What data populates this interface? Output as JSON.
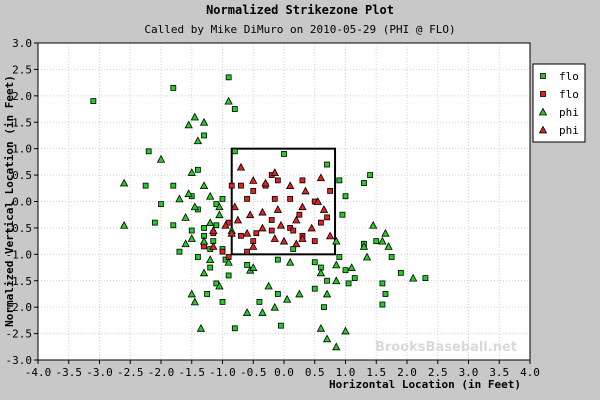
{
  "chart_data": {
    "type": "scatter",
    "title": "Normalized Strikezone Plot",
    "subtitle": "Called by Mike DiMuro on 2010-05-29 (PHI @ FLO)",
    "xlabel": "Horizontal Location (in Feet)",
    "ylabel": "Normalized Vertical Location (in Feet)",
    "xlim": [
      -4.0,
      4.0
    ],
    "ylim": [
      -3.0,
      3.0
    ],
    "xticks": [
      "-4.0",
      "-3.5",
      "-3.0",
      "-2.5",
      "-2.0",
      "-1.5",
      "-1.0",
      "-0.5",
      "0.0",
      "0.5",
      "1.0",
      "1.5",
      "2.0",
      "2.5",
      "3.0",
      "3.5",
      "4.0"
    ],
    "yticks": [
      "3.0",
      "2.5",
      "2.0",
      "1.5",
      "1.0",
      "0.5",
      "0.0",
      "-0.5",
      "-1.0",
      "-1.5",
      "-2.0",
      "-2.5",
      "-3.0"
    ],
    "grid": true,
    "legend_position": "top-right",
    "strike_zone": {
      "x": [
        -0.85,
        0.83
      ],
      "y": [
        -1.0,
        1.0
      ]
    },
    "watermark": "BrooksBaseball.net",
    "series": [
      {
        "name": "flo",
        "marker": "square",
        "color": "#22cc22",
        "points": [
          [
            -3.1,
            1.9
          ],
          [
            -1.8,
            2.15
          ],
          [
            -1.3,
            1.25
          ],
          [
            -0.9,
            2.35
          ],
          [
            -0.8,
            1.75
          ],
          [
            -0.8,
            0.95
          ],
          [
            0.0,
            0.9
          ],
          [
            -2.2,
            0.95
          ],
          [
            -2.25,
            0.3
          ],
          [
            -1.8,
            0.3
          ],
          [
            -2.0,
            -0.05
          ],
          [
            -1.5,
            0.1
          ],
          [
            -1.4,
            -0.15
          ],
          [
            -1.4,
            0.6
          ],
          [
            -1.1,
            -0.05
          ],
          [
            -1.0,
            0.05
          ],
          [
            -1.1,
            -0.45
          ],
          [
            -1.3,
            -0.5
          ],
          [
            -1.5,
            -0.55
          ],
          [
            -1.8,
            -0.45
          ],
          [
            -2.1,
            -0.4
          ],
          [
            -1.7,
            -0.95
          ],
          [
            -1.3,
            -0.65
          ],
          [
            -1.15,
            -0.75
          ],
          [
            -1.0,
            -0.9
          ],
          [
            -0.95,
            -1.1
          ],
          [
            -0.9,
            -1.4
          ],
          [
            -1.2,
            -0.9
          ],
          [
            -1.4,
            -1.05
          ],
          [
            -1.2,
            -1.25
          ],
          [
            -1.1,
            -1.55
          ],
          [
            -1.25,
            -1.75
          ],
          [
            -1.0,
            -1.9
          ],
          [
            -0.8,
            -2.4
          ],
          [
            -0.6,
            -1.2
          ],
          [
            -0.4,
            -1.9
          ],
          [
            -0.1,
            -1.75
          ],
          [
            -0.05,
            -2.35
          ],
          [
            -0.1,
            -1.1
          ],
          [
            0.15,
            -0.9
          ],
          [
            0.5,
            -1.15
          ],
          [
            0.6,
            -1.25
          ],
          [
            0.7,
            -1.5
          ],
          [
            0.5,
            -1.65
          ],
          [
            0.65,
            -2.0
          ],
          [
            0.9,
            -1.05
          ],
          [
            1.0,
            -1.3
          ],
          [
            1.15,
            -1.45
          ],
          [
            1.05,
            -1.55
          ],
          [
            1.3,
            -0.8
          ],
          [
            1.5,
            -0.75
          ],
          [
            1.75,
            -1.05
          ],
          [
            1.6,
            -1.55
          ],
          [
            1.65,
            -1.75
          ],
          [
            1.6,
            -1.95
          ],
          [
            1.9,
            -1.35
          ],
          [
            2.3,
            -1.45
          ],
          [
            0.7,
            0.7
          ],
          [
            0.9,
            0.4
          ],
          [
            1.0,
            0.1
          ],
          [
            0.95,
            -0.25
          ],
          [
            1.3,
            0.35
          ],
          [
            1.4,
            0.5
          ]
        ]
      },
      {
        "name": "flo",
        "marker": "square",
        "color": "#dd2222",
        "points": [
          [
            -0.9,
            -0.4
          ],
          [
            -0.85,
            0.3
          ],
          [
            -0.7,
            0.3
          ],
          [
            -0.6,
            0.05
          ],
          [
            -0.5,
            0.2
          ],
          [
            -0.3,
            0.3
          ],
          [
            -0.2,
            -0.35
          ],
          [
            -0.15,
            0.05
          ],
          [
            -0.1,
            0.4
          ],
          [
            0.1,
            0.05
          ],
          [
            0.3,
            0.4
          ],
          [
            0.25,
            -0.25
          ],
          [
            0.5,
            0.0
          ],
          [
            0.6,
            -0.4
          ],
          [
            0.75,
            0.2
          ],
          [
            0.7,
            -0.3
          ],
          [
            0.5,
            -0.75
          ],
          [
            0.3,
            -0.65
          ],
          [
            0.1,
            -0.5
          ],
          [
            -0.2,
            -0.55
          ],
          [
            -0.45,
            -0.6
          ],
          [
            -0.5,
            -0.75
          ],
          [
            -0.7,
            -0.65
          ],
          [
            -0.6,
            -0.95
          ],
          [
            -0.9,
            -1.05
          ],
          [
            -1.0,
            -0.95
          ],
          [
            -1.3,
            -0.85
          ],
          [
            -1.15,
            -0.6
          ],
          [
            -0.2,
            0.5
          ],
          [
            0.15,
            -0.55
          ]
        ]
      },
      {
        "name": "phi",
        "marker": "triangle",
        "color": "#22cc22",
        "points": [
          [
            -0.9,
            1.9
          ],
          [
            -1.45,
            1.6
          ],
          [
            -1.55,
            1.45
          ],
          [
            -1.3,
            1.5
          ],
          [
            -1.4,
            1.15
          ],
          [
            -2.0,
            0.8
          ],
          [
            -1.5,
            0.55
          ],
          [
            -2.6,
            0.35
          ],
          [
            -2.6,
            -0.45
          ],
          [
            -1.55,
            0.15
          ],
          [
            -1.7,
            0.05
          ],
          [
            -1.3,
            0.3
          ],
          [
            -1.2,
            0.1
          ],
          [
            -1.45,
            -0.1
          ],
          [
            -1.6,
            -0.3
          ],
          [
            -1.2,
            -0.4
          ],
          [
            -1.15,
            -0.55
          ],
          [
            -1.05,
            -0.25
          ],
          [
            -1.05,
            -0.1
          ],
          [
            -1.5,
            -0.7
          ],
          [
            -1.6,
            -0.8
          ],
          [
            -1.3,
            -0.75
          ],
          [
            -1.2,
            -1.1
          ],
          [
            -1.3,
            -1.35
          ],
          [
            -1.5,
            -1.75
          ],
          [
            -1.45,
            -1.9
          ],
          [
            -1.05,
            -1.6
          ],
          [
            -0.9,
            -1.15
          ],
          [
            -0.55,
            -1.3
          ],
          [
            -0.6,
            -2.1
          ],
          [
            -0.35,
            -2.1
          ],
          [
            -0.25,
            -1.6
          ],
          [
            -0.15,
            -2.0
          ],
          [
            0.05,
            -1.85
          ],
          [
            0.25,
            -1.75
          ],
          [
            0.1,
            -1.15
          ],
          [
            0.6,
            -1.35
          ],
          [
            0.85,
            -1.2
          ],
          [
            0.85,
            -1.5
          ],
          [
            1.1,
            -1.25
          ],
          [
            1.35,
            -1.05
          ],
          [
            1.3,
            -0.85
          ],
          [
            1.6,
            -0.75
          ],
          [
            1.7,
            -0.85
          ],
          [
            1.65,
            -0.6
          ],
          [
            0.85,
            -0.75
          ],
          [
            0.6,
            -2.4
          ],
          [
            0.7,
            -2.6
          ],
          [
            0.85,
            -2.75
          ],
          [
            1.0,
            -2.45
          ],
          [
            -1.35,
            -2.4
          ],
          [
            1.45,
            -0.45
          ],
          [
            -0.85,
            -0.55
          ],
          [
            0.7,
            -1.75
          ],
          [
            2.1,
            -1.45
          ],
          [
            -0.5,
            -1.25
          ]
        ]
      },
      {
        "name": "phi",
        "marker": "triangle",
        "color": "#dd2222",
        "points": [
          [
            -0.7,
            0.65
          ],
          [
            -0.5,
            0.4
          ],
          [
            -0.3,
            0.35
          ],
          [
            -0.15,
            0.55
          ],
          [
            0.1,
            0.3
          ],
          [
            0.35,
            0.2
          ],
          [
            0.6,
            0.45
          ],
          [
            0.55,
            0.0
          ],
          [
            0.3,
            -0.1
          ],
          [
            -0.1,
            -0.15
          ],
          [
            -0.35,
            -0.2
          ],
          [
            -0.55,
            -0.25
          ],
          [
            -0.75,
            -0.35
          ],
          [
            -0.6,
            -0.6
          ],
          [
            -0.35,
            -0.5
          ],
          [
            -0.05,
            -0.45
          ],
          [
            0.2,
            -0.35
          ],
          [
            0.45,
            -0.5
          ],
          [
            0.65,
            -0.15
          ],
          [
            0.3,
            -0.7
          ],
          [
            -0.15,
            -0.7
          ],
          [
            -0.5,
            -0.85
          ],
          [
            -0.85,
            -0.6
          ],
          [
            -1.15,
            -0.55
          ],
          [
            -1.15,
            -0.85
          ],
          [
            -0.95,
            -0.45
          ],
          [
            0.0,
            -0.75
          ],
          [
            0.2,
            -0.8
          ],
          [
            0.75,
            -0.65
          ],
          [
            -0.8,
            -0.1
          ]
        ]
      }
    ]
  }
}
